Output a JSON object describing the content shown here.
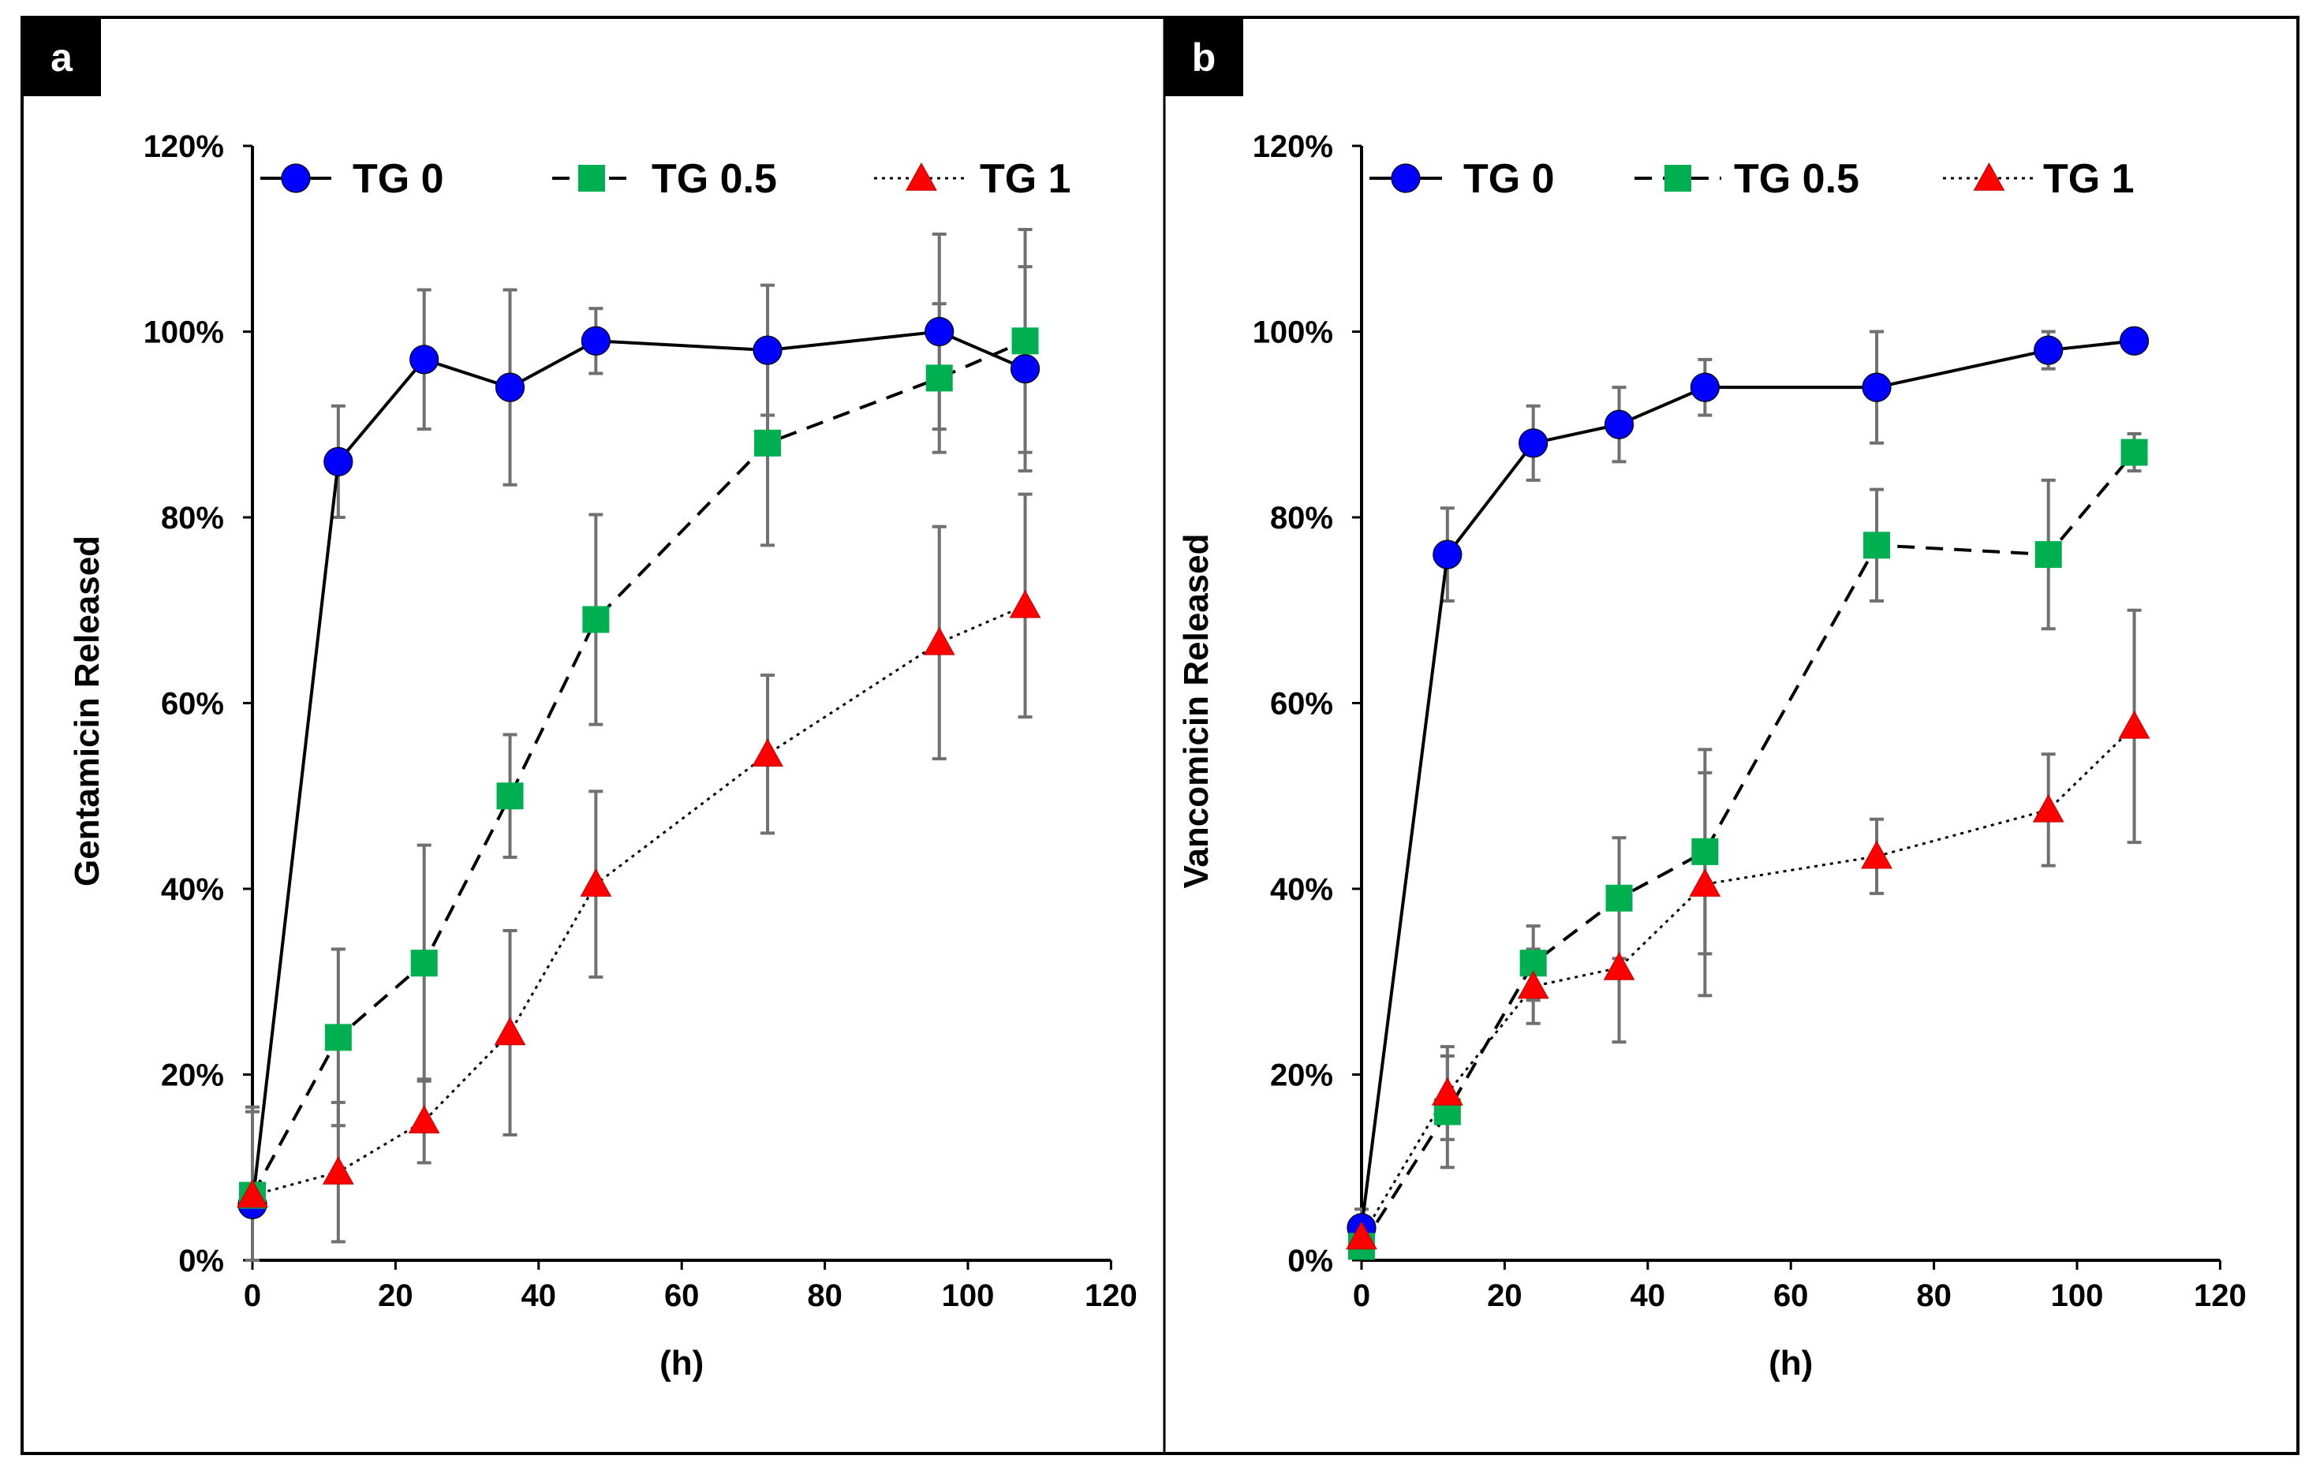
{
  "chart_data": [
    {
      "type": "line",
      "panel_label": "a",
      "title": "",
      "xlabel": "(h)",
      "ylabel": "Gentamicin Released",
      "xlim": [
        0,
        120
      ],
      "ylim": [
        0,
        120
      ],
      "xticks": [
        0,
        20,
        40,
        60,
        80,
        100,
        120
      ],
      "xtick_labels": [
        "0",
        "20",
        "40",
        "60",
        "80",
        "100",
        "120"
      ],
      "yticks": [
        0,
        20,
        40,
        60,
        80,
        100,
        120
      ],
      "ytick_labels": [
        "0%",
        "20%",
        "40%",
        "60%",
        "80%",
        "100%",
        "120%"
      ],
      "legend_position": "top",
      "grid": false,
      "series": [
        {
          "name": "TG 0",
          "color": "#0000ff",
          "marker": "circle",
          "line_style": "solid",
          "x": [
            0,
            12,
            24,
            36,
            48,
            72,
            96,
            108
          ],
          "y": [
            6,
            86,
            97,
            94,
            99,
            98,
            100,
            96
          ],
          "err": [
            10,
            6,
            7.5,
            10.5,
            3.5,
            7,
            10.5,
            11
          ]
        },
        {
          "name": "TG 0.5",
          "color": "#00b050",
          "marker": "square",
          "line_style": "dashed",
          "x": [
            0,
            12,
            24,
            36,
            48,
            72,
            96,
            108
          ],
          "y": [
            7,
            24,
            32,
            50,
            69,
            88,
            95,
            99
          ],
          "err": [
            9.5,
            9.5,
            12.7,
            6.6,
            11.3,
            11,
            8,
            12
          ]
        },
        {
          "name": "TG 1",
          "color": "#ff0000",
          "marker": "triangle",
          "line_style": "dotted",
          "x": [
            0,
            12,
            24,
            36,
            48,
            72,
            96,
            108
          ],
          "y": [
            7,
            9.5,
            15,
            24.5,
            40.5,
            54.5,
            66.5,
            70.5
          ],
          "err": [
            0,
            7.5,
            4.5,
            11,
            10,
            8.5,
            12.5,
            12
          ]
        }
      ]
    },
    {
      "type": "line",
      "panel_label": "b",
      "title": "",
      "xlabel": "(h)",
      "ylabel": "Vancomicin Released",
      "xlim": [
        0,
        120
      ],
      "ylim": [
        0,
        120
      ],
      "xticks": [
        0,
        20,
        40,
        60,
        80,
        100,
        120
      ],
      "xtick_labels": [
        "0",
        "20",
        "40",
        "60",
        "80",
        "100",
        "120"
      ],
      "yticks": [
        0,
        20,
        40,
        60,
        80,
        100,
        120
      ],
      "ytick_labels": [
        "0%",
        "20%",
        "40%",
        "60%",
        "80%",
        "100%",
        "120%"
      ],
      "legend_position": "top",
      "grid": false,
      "series": [
        {
          "name": "TG 0",
          "color": "#0000ff",
          "marker": "circle",
          "line_style": "solid",
          "x": [
            0,
            12,
            24,
            36,
            48,
            72,
            96,
            108
          ],
          "y": [
            3.5,
            76,
            88,
            90,
            94,
            94,
            98,
            99
          ],
          "err": [
            2,
            5,
            4,
            4,
            3,
            6,
            2,
            1
          ]
        },
        {
          "name": "TG 0.5",
          "color": "#00b050",
          "marker": "square",
          "line_style": "dashed",
          "x": [
            0,
            12,
            24,
            36,
            48,
            72,
            96,
            108
          ],
          "y": [
            1.5,
            16,
            32,
            39,
            44,
            77,
            76,
            87
          ],
          "err": [
            1,
            6,
            4,
            6.5,
            11,
            6,
            8,
            2
          ]
        },
        {
          "name": "TG 1",
          "color": "#ff0000",
          "marker": "triangle",
          "line_style": "dotted",
          "x": [
            0,
            12,
            24,
            36,
            48,
            72,
            96,
            108
          ],
          "y": [
            2.5,
            18,
            29.5,
            31.5,
            40.5,
            43.5,
            48.5,
            57.5
          ],
          "err": [
            1.5,
            5,
            4,
            8,
            12,
            4,
            6,
            12.5
          ]
        }
      ]
    }
  ]
}
